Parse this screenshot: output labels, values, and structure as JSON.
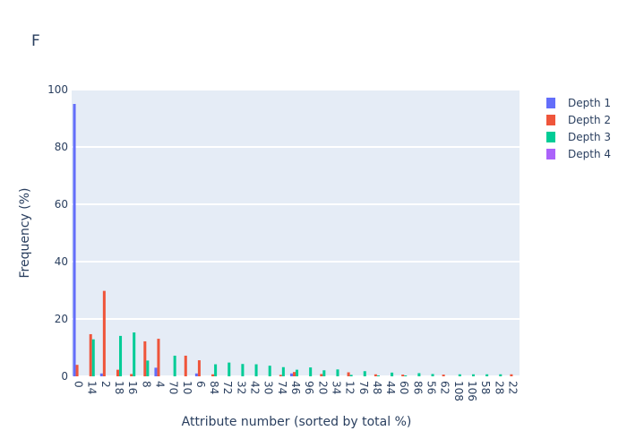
{
  "chart_data": {
    "type": "bar",
    "title": "F",
    "xlabel": "Attribute number (sorted by total %)",
    "ylabel": "Frequency (%)",
    "ylim": [
      0,
      100
    ],
    "yticks": [
      0,
      20,
      40,
      60,
      80,
      100
    ],
    "grid": true,
    "legend_position": "top-right",
    "categories": [
      "0",
      "14",
      "2",
      "18",
      "16",
      "8",
      "4",
      "70",
      "10",
      "6",
      "84",
      "72",
      "32",
      "42",
      "30",
      "74",
      "46",
      "96",
      "20",
      "34",
      "12",
      "76",
      "48",
      "44",
      "60",
      "86",
      "56",
      "62",
      "108",
      "106",
      "58",
      "28",
      "22"
    ],
    "series": [
      {
        "name": "Depth 1",
        "color": "#636efa",
        "values": [
          95,
          0,
          1,
          0,
          0,
          0,
          3,
          0,
          0,
          1,
          0,
          0,
          0,
          0,
          0,
          0,
          1,
          0,
          0,
          0,
          0,
          0,
          0,
          0,
          0,
          0,
          0,
          0,
          0,
          0,
          0,
          0,
          0
        ]
      },
      {
        "name": "Depth 2",
        "color": "#ef553b",
        "values": [
          4,
          14.7,
          29.8,
          2.3,
          0.8,
          12.2,
          13.1,
          0,
          7.2,
          5.6,
          0.7,
          0,
          0,
          0,
          0,
          0.5,
          1.5,
          0,
          0.8,
          0,
          1.4,
          0,
          0.7,
          0,
          0.6,
          0,
          0,
          0.6,
          0,
          0,
          0,
          0,
          0.7
        ]
      },
      {
        "name": "Depth 3",
        "color": "#00cc96",
        "values": [
          0,
          12.9,
          0,
          14.1,
          15.3,
          5.5,
          0,
          7.2,
          0,
          0,
          4.2,
          4.8,
          4.3,
          4.2,
          3.7,
          3.2,
          2.3,
          3.1,
          2.1,
          2.4,
          0.5,
          1.8,
          0.3,
          1.3,
          0.3,
          1.1,
          0.8,
          0,
          0.7,
          0.7,
          0.7,
          0.7,
          0
        ]
      },
      {
        "name": "Depth 4",
        "color": "#ab63fa",
        "values": [
          0,
          0,
          0,
          0,
          0,
          0,
          0,
          0,
          0,
          0,
          0,
          0,
          0,
          0,
          0,
          0,
          0,
          0,
          0,
          0,
          0,
          0,
          0,
          0,
          0,
          0,
          0,
          0,
          0,
          0,
          0,
          0,
          0
        ]
      }
    ]
  }
}
